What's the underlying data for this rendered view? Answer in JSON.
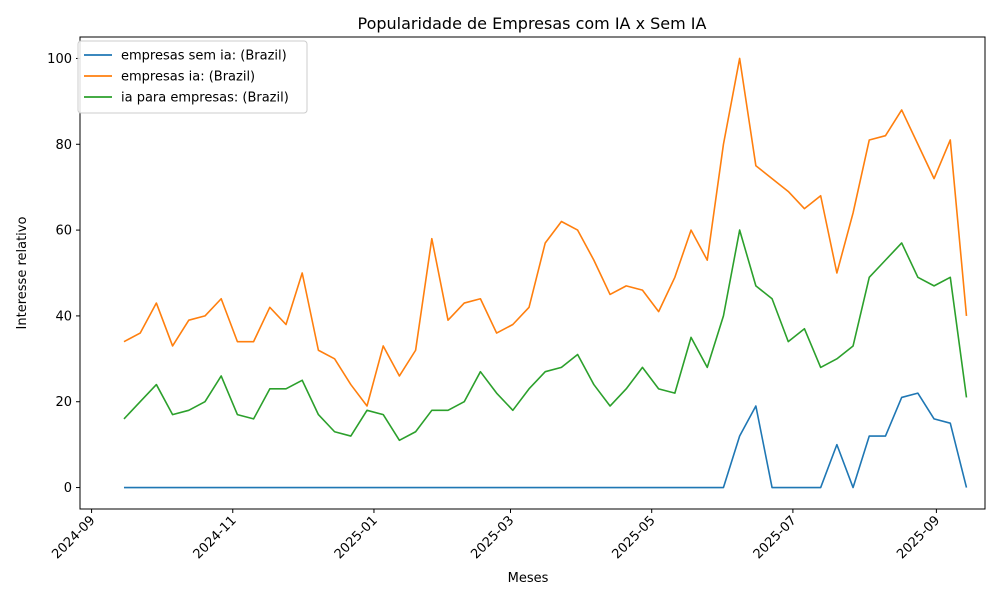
{
  "chart_data": {
    "type": "line",
    "title": "Popularidade de Empresas com IA x Sem IA",
    "xlabel": "Meses",
    "ylabel": "Interesse relativo",
    "x_tick_labels": [
      "2024-09",
      "2024-11",
      "2025-01",
      "2025-03",
      "2025-05",
      "2025-07",
      "2025-09"
    ],
    "y_tick_labels": [
      "0",
      "20",
      "40",
      "60",
      "80",
      "100"
    ],
    "xlim": [
      "2024-08-27",
      "2025-09-22"
    ],
    "ylim": [
      -5,
      105
    ],
    "legend_position": "upper-left",
    "grid": false,
    "x": [
      "2024-09-15",
      "2024-09-22",
      "2024-09-29",
      "2024-10-06",
      "2024-10-13",
      "2024-10-20",
      "2024-10-27",
      "2024-11-03",
      "2024-11-10",
      "2024-11-17",
      "2024-11-24",
      "2024-12-01",
      "2024-12-08",
      "2024-12-15",
      "2024-12-22",
      "2024-12-29",
      "2025-01-05",
      "2025-01-12",
      "2025-01-19",
      "2025-01-26",
      "2025-02-02",
      "2025-02-09",
      "2025-02-16",
      "2025-02-23",
      "2025-03-02",
      "2025-03-09",
      "2025-03-16",
      "2025-03-23",
      "2025-03-30",
      "2025-04-06",
      "2025-04-13",
      "2025-04-20",
      "2025-04-27",
      "2025-05-04",
      "2025-05-11",
      "2025-05-18",
      "2025-05-25",
      "2025-06-01",
      "2025-06-08",
      "2025-06-15",
      "2025-06-22",
      "2025-06-29",
      "2025-07-06",
      "2025-07-13",
      "2025-07-20",
      "2025-07-27",
      "2025-08-03",
      "2025-08-10",
      "2025-08-17",
      "2025-08-24",
      "2025-08-31",
      "2025-09-07",
      "2025-09-14"
    ],
    "series": [
      {
        "name": "empresas sem ia: (Brazil)",
        "color": "#1f77b4",
        "values": [
          0,
          0,
          0,
          0,
          0,
          0,
          0,
          0,
          0,
          0,
          0,
          0,
          0,
          0,
          0,
          0,
          0,
          0,
          0,
          0,
          0,
          0,
          0,
          0,
          0,
          0,
          0,
          0,
          0,
          0,
          0,
          0,
          0,
          0,
          0,
          0,
          0,
          0,
          12,
          19,
          0,
          0,
          0,
          0,
          10,
          0,
          12,
          12,
          21,
          22,
          16,
          15,
          0
        ]
      },
      {
        "name": "empresas ia: (Brazil)",
        "color": "#ff7f0e",
        "values": [
          34,
          36,
          43,
          33,
          39,
          40,
          44,
          34,
          34,
          42,
          38,
          50,
          32,
          30,
          24,
          19,
          33,
          26,
          32,
          58,
          39,
          43,
          44,
          36,
          38,
          42,
          57,
          62,
          60,
          53,
          45,
          47,
          46,
          41,
          49,
          60,
          53,
          80,
          100,
          75,
          72,
          69,
          65,
          68,
          50,
          64,
          81,
          82,
          88,
          80,
          72,
          81,
          40
        ]
      },
      {
        "name": "ia para empresas: (Brazil)",
        "color": "#2ca02c",
        "values": [
          16,
          20,
          24,
          17,
          18,
          20,
          26,
          17,
          16,
          23,
          23,
          25,
          17,
          13,
          12,
          18,
          17,
          11,
          13,
          18,
          18,
          20,
          27,
          22,
          18,
          23,
          27,
          28,
          31,
          24,
          19,
          23,
          28,
          23,
          22,
          35,
          28,
          40,
          60,
          47,
          44,
          34,
          37,
          28,
          30,
          33,
          49,
          53,
          57,
          49,
          47,
          49,
          21
        ]
      }
    ]
  }
}
